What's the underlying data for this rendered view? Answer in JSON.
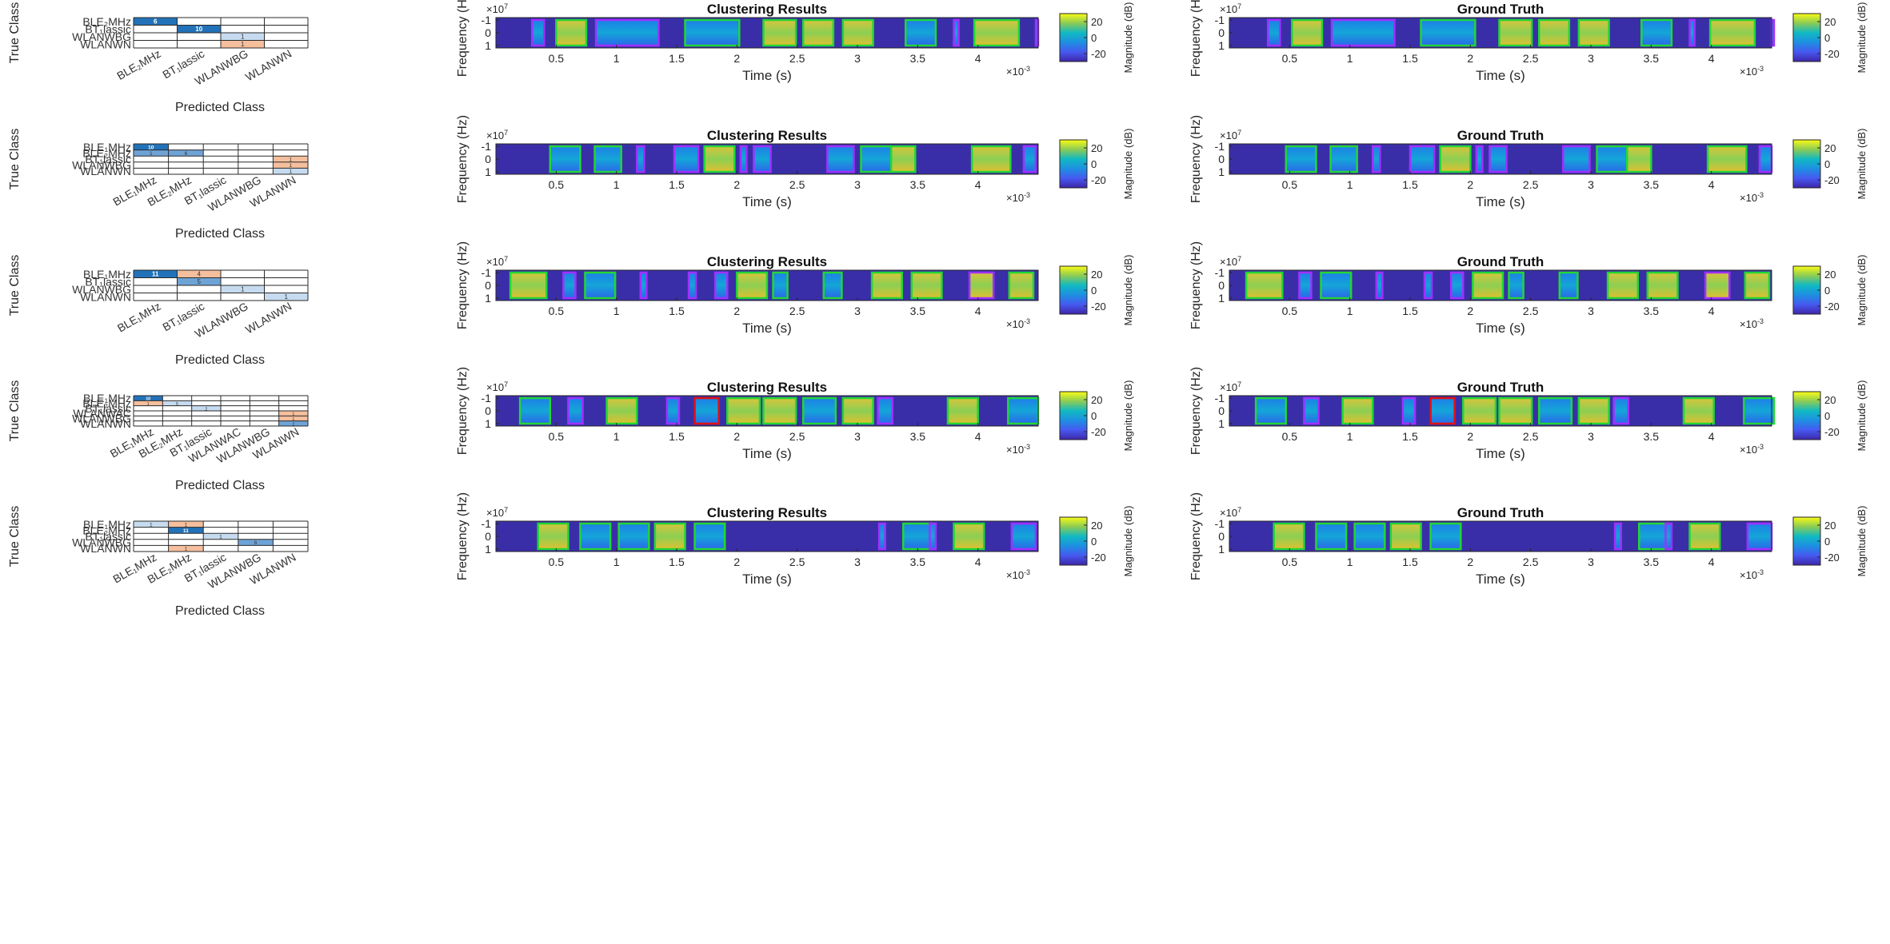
{
  "figure": {
    "left_column": {
      "ylabel": "True Class",
      "xlabel": "Predicted Class"
    },
    "middle_column": {
      "title": "Clustering Results"
    },
    "right_column": {
      "title": "Ground Truth"
    },
    "spectrogram_axes": {
      "ylabel": "Frequency (Hz)",
      "xlabel": "Time (s)",
      "y_exponent": "×10",
      "y_exponent_power": "7",
      "x_exponent": "×10",
      "x_exponent_power": "-3",
      "colorbar_label": "Magnitude (dB)"
    }
  },
  "chart_data": [
    {
      "type": "heatmap",
      "row": 1,
      "rows": [
        "BLE₂MHz",
        "BT₁lassic",
        "WLANWBG",
        "WLANWN"
      ],
      "cols": [
        "BLE₂MHz",
        "BT₁lassic",
        "WLANWBG",
        "WLANWN"
      ],
      "cells": [
        {
          "r": 0,
          "c": 0,
          "v": "6",
          "kind": "diag"
        },
        {
          "r": 1,
          "c": 1,
          "v": "10",
          "kind": "diag"
        },
        {
          "r": 2,
          "c": 2,
          "v": "1",
          "kind": "light"
        },
        {
          "r": 3,
          "c": 2,
          "v": "1",
          "kind": "off"
        }
      ],
      "xlabel": "Predicted Class",
      "ylabel": "True Class"
    },
    {
      "type": "heatmap",
      "row": 2,
      "rows": [
        "BLE₁MHz",
        "BLE₂MHz",
        "BT₁lassic",
        "WLANWBG",
        "WLANWN"
      ],
      "cols": [
        "BLE₁MHz",
        "BLE₂MHz",
        "BT₁lassic",
        "WLANWBG",
        "WLANWN"
      ],
      "cells": [
        {
          "r": 0,
          "c": 0,
          "v": "10",
          "kind": "diag"
        },
        {
          "r": 1,
          "c": 0,
          "v": "1",
          "kind": "mid"
        },
        {
          "r": 1,
          "c": 1,
          "v": "6",
          "kind": "mid"
        },
        {
          "r": 2,
          "c": 4,
          "v": "1",
          "kind": "off"
        },
        {
          "r": 3,
          "c": 4,
          "v": "1",
          "kind": "off"
        },
        {
          "r": 4,
          "c": 4,
          "v": "1",
          "kind": "light"
        }
      ],
      "xlabel": "Predicted Class",
      "ylabel": "True Class"
    },
    {
      "type": "heatmap",
      "row": 3,
      "rows": [
        "BLE₁MHz",
        "BT₁lassic",
        "WLANWBG",
        "WLANWN"
      ],
      "cols": [
        "BLE₁MHz",
        "BT₁lassic",
        "WLANWBG",
        "WLANWN"
      ],
      "cells": [
        {
          "r": 0,
          "c": 0,
          "v": "11",
          "kind": "diag"
        },
        {
          "r": 0,
          "c": 1,
          "v": "4",
          "kind": "off"
        },
        {
          "r": 1,
          "c": 1,
          "v": "5",
          "kind": "mid"
        },
        {
          "r": 2,
          "c": 2,
          "v": "1",
          "kind": "light"
        },
        {
          "r": 3,
          "c": 3,
          "v": "1",
          "kind": "light"
        }
      ],
      "xlabel": "Predicted Class",
      "ylabel": "True Class"
    },
    {
      "type": "heatmap",
      "row": 4,
      "rows": [
        "BLE₁MHz",
        "BLE₂MHz",
        "BT₁lassic",
        "WLANWAC",
        "WLANWBG",
        "WLANWN"
      ],
      "cols": [
        "BLE₁MHz",
        "BLE₂MHz",
        "BT₁lassic",
        "WLANWAC",
        "WLANWBG",
        "WLANWN"
      ],
      "cells": [
        {
          "r": 0,
          "c": 0,
          "v": "10",
          "kind": "diag"
        },
        {
          "r": 1,
          "c": 0,
          "v": "1",
          "kind": "off"
        },
        {
          "r": 1,
          "c": 1,
          "v": "5",
          "kind": "light"
        },
        {
          "r": 2,
          "c": 2,
          "v": "2",
          "kind": "light"
        },
        {
          "r": 3,
          "c": 5,
          "v": "1",
          "kind": "off"
        },
        {
          "r": 4,
          "c": 5,
          "v": "1",
          "kind": "off"
        },
        {
          "r": 5,
          "c": 5,
          "v": "2",
          "kind": "mid"
        }
      ],
      "xlabel": "Predicted Class",
      "ylabel": "True Class"
    },
    {
      "type": "heatmap",
      "row": 5,
      "rows": [
        "BLE₁MHz",
        "BLE₂MHz",
        "BT₁lassic",
        "WLANWBG",
        "WLANWN"
      ],
      "cols": [
        "BLE₁MHz",
        "BLE₂MHz",
        "BT₁lassic",
        "WLANWBG",
        "WLANWN"
      ],
      "cells": [
        {
          "r": 0,
          "c": 0,
          "v": "1",
          "kind": "light"
        },
        {
          "r": 0,
          "c": 1,
          "v": "1",
          "kind": "off"
        },
        {
          "r": 1,
          "c": 1,
          "v": "11",
          "kind": "diag"
        },
        {
          "r": 2,
          "c": 2,
          "v": "1",
          "kind": "light"
        },
        {
          "r": 3,
          "c": 3,
          "v": "6",
          "kind": "mid"
        },
        {
          "r": 4,
          "c": 1,
          "v": "1",
          "kind": "off"
        }
      ],
      "xlabel": "Predicted Class",
      "ylabel": "True Class"
    },
    {
      "type": "spectrogram",
      "panels": [
        "Clustering Results",
        "Ground Truth"
      ],
      "x_range": [
        0,
        4.5
      ],
      "x_ticks": [
        "0.5",
        "1",
        "1.5",
        "2",
        "2.5",
        "3",
        "3.5",
        "4"
      ],
      "x_tick_values": [
        0.5,
        1,
        1.5,
        2,
        2.5,
        3,
        3.5,
        4
      ],
      "y_range": [
        -1.2,
        1.2
      ],
      "y_ticks": [
        "-1",
        "0",
        "1"
      ],
      "y_tick_values": [
        -1,
        0,
        1
      ],
      "colorbar_ticks": [
        "20",
        "0",
        "-20"
      ],
      "colorbar_tick_values": [
        20,
        0,
        -20
      ],
      "colorbar_range": [
        -30,
        30
      ],
      "rows": [
        {
          "row": 1,
          "bursts": [
            {
              "t": 0.3,
              "w": 0.1,
              "c": "p"
            },
            {
              "t": 0.5,
              "w": 0.25,
              "c": "g",
              "hot": true
            },
            {
              "t": 0.83,
              "w": 0.52,
              "c": "p"
            },
            {
              "t": 1.57,
              "w": 0.45,
              "c": "g"
            },
            {
              "t": 2.22,
              "w": 0.27,
              "c": "g",
              "hot": true
            },
            {
              "t": 2.55,
              "w": 0.25,
              "c": "g",
              "hot": true
            },
            {
              "t": 2.88,
              "w": 0.25,
              "c": "g",
              "hot": true
            },
            {
              "t": 3.4,
              "w": 0.25,
              "c": "g"
            },
            {
              "t": 3.8,
              "w": 0.04,
              "c": "p"
            },
            {
              "t": 3.97,
              "w": 0.37,
              "c": "g",
              "hot": true
            },
            {
              "t": 4.48,
              "w": 0.02,
              "c": "p"
            }
          ]
        },
        {
          "row": 2,
          "bursts": [
            {
              "t": 0.45,
              "w": 0.25,
              "c": "g"
            },
            {
              "t": 0.82,
              "w": 0.22,
              "c": "g"
            },
            {
              "t": 1.17,
              "w": 0.06,
              "c": "p"
            },
            {
              "t": 1.48,
              "w": 0.2,
              "c": "p"
            },
            {
              "t": 1.73,
              "w": 0.25,
              "c": "g",
              "hot": true
            },
            {
              "t": 2.03,
              "w": 0.05,
              "c": "p"
            },
            {
              "t": 2.14,
              "w": 0.14,
              "c": "p"
            },
            {
              "t": 2.75,
              "w": 0.22,
              "c": "p"
            },
            {
              "t": 3.03,
              "w": 0.25,
              "c": "g"
            },
            {
              "t": 3.28,
              "w": 0.2,
              "c": "g",
              "hot": true
            },
            {
              "t": 3.95,
              "w": 0.32,
              "c": "g",
              "hot": true
            },
            {
              "t": 4.38,
              "w": 0.1,
              "c": "p"
            }
          ]
        },
        {
          "row": 3,
          "bursts": [
            {
              "t": 0.12,
              "w": 0.3,
              "c": "g",
              "hot": true
            },
            {
              "t": 0.56,
              "w": 0.1,
              "c": "p"
            },
            {
              "t": 0.74,
              "w": 0.25,
              "c": "g"
            },
            {
              "t": 1.2,
              "w": 0.05,
              "c": "p"
            },
            {
              "t": 1.6,
              "w": 0.06,
              "c": "p"
            },
            {
              "t": 1.82,
              "w": 0.1,
              "c": "p"
            },
            {
              "t": 2.0,
              "w": 0.25,
              "c": "g",
              "hot": true
            },
            {
              "t": 2.3,
              "w": 0.12,
              "c": "g"
            },
            {
              "t": 2.72,
              "w": 0.15,
              "c": "g"
            },
            {
              "t": 3.12,
              "w": 0.25,
              "c": "g",
              "hot": true
            },
            {
              "t": 3.45,
              "w": 0.25,
              "c": "g",
              "hot": true
            },
            {
              "t": 3.93,
              "w": 0.2,
              "c": "p",
              "hot": true
            },
            {
              "t": 4.26,
              "w": 0.2,
              "c": "g",
              "hot": true
            }
          ]
        },
        {
          "row": 4,
          "bursts": [
            {
              "t": 0.2,
              "w": 0.25,
              "c": "g"
            },
            {
              "t": 0.6,
              "w": 0.12,
              "c": "p"
            },
            {
              "t": 0.92,
              "w": 0.25,
              "c": "g",
              "hot": true
            },
            {
              "t": 1.42,
              "w": 0.1,
              "c": "p"
            },
            {
              "t": 1.65,
              "w": 0.2,
              "c": "r"
            },
            {
              "t": 1.92,
              "w": 0.27,
              "c": "g",
              "hot": true
            },
            {
              "t": 2.22,
              "w": 0.27,
              "c": "g",
              "hot": true
            },
            {
              "t": 2.55,
              "w": 0.27,
              "c": "g"
            },
            {
              "t": 2.88,
              "w": 0.25,
              "c": "g",
              "hot": true
            },
            {
              "t": 3.17,
              "w": 0.12,
              "c": "p"
            },
            {
              "t": 3.75,
              "w": 0.25,
              "c": "g",
              "hot": true
            },
            {
              "t": 4.25,
              "w": 0.25,
              "c": "g"
            }
          ]
        },
        {
          "row": 5,
          "bursts": [
            {
              "t": 0.35,
              "w": 0.25,
              "c": "g",
              "hot": true
            },
            {
              "t": 0.7,
              "w": 0.25,
              "c": "g"
            },
            {
              "t": 1.02,
              "w": 0.25,
              "c": "g"
            },
            {
              "t": 1.32,
              "w": 0.25,
              "c": "g",
              "hot": true
            },
            {
              "t": 1.65,
              "w": 0.25,
              "c": "g"
            },
            {
              "t": 3.18,
              "w": 0.05,
              "c": "p"
            },
            {
              "t": 3.38,
              "w": 0.25,
              "c": "g"
            },
            {
              "t": 3.6,
              "w": 0.05,
              "c": "p"
            },
            {
              "t": 3.8,
              "w": 0.25,
              "c": "g",
              "hot": true
            },
            {
              "t": 4.28,
              "w": 0.2,
              "c": "p"
            }
          ]
        }
      ]
    }
  ],
  "colors": {
    "background": "#3a2ea8",
    "burst_green": "#22d634",
    "burst_purple": "#a030ff",
    "burst_red": "#e01010",
    "cm_diag": "#2272b9",
    "cm_mid": "#6ea3d6",
    "cm_light": "#c6dbef",
    "cm_off": "#f5bf9d"
  }
}
